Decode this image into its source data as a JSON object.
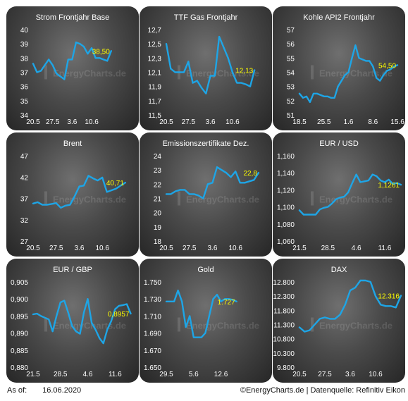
{
  "footer": {
    "as_of_label": "As of:",
    "as_of_date": "16.06.2020",
    "credit": "©EnergyCharts.de | Datenquelle: Refinitiv Eikon"
  },
  "watermark": "EnergyCharts.de",
  "colors": {
    "line": "#1ea5e6",
    "last_value": "#ffff00",
    "text": "#ffffff"
  },
  "chart_data": [
    {
      "type": "line",
      "title": "Strom Frontjahr Base",
      "ylim": [
        34,
        40
      ],
      "yticks": [
        "34",
        "35",
        "36",
        "37",
        "38",
        "39",
        "40"
      ],
      "xlim": [
        0,
        26
      ],
      "xticks": [
        {
          "x": 0,
          "label": "20.5"
        },
        {
          "x": 5,
          "label": "27.5"
        },
        {
          "x": 10,
          "label": "3.6"
        },
        {
          "x": 15,
          "label": "10.6"
        }
      ],
      "x": [
        0,
        1,
        2,
        3,
        4,
        5,
        6,
        7,
        8,
        9,
        10,
        11,
        12,
        13,
        14,
        15,
        16,
        17,
        18,
        19,
        20
      ],
      "values": [
        37.6,
        37.0,
        37.1,
        37.5,
        37.9,
        37.5,
        36.9,
        36.7,
        36.5,
        37.9,
        37.9,
        39.1,
        39.0,
        38.8,
        38.3,
        38.7,
        38.0,
        38.0,
        37.9,
        37.8,
        38.5
      ],
      "last_label": "38,50"
    },
    {
      "type": "line",
      "title": "TTF Gas Frontjahr",
      "ylim": [
        11.5,
        12.7
      ],
      "yticks": [
        "11,5",
        "11,7",
        "11,9",
        "12,1",
        "12,3",
        "12,5",
        "12,7"
      ],
      "xlim": [
        0,
        23
      ],
      "xticks": [
        {
          "x": 0,
          "label": "20.5"
        },
        {
          "x": 5,
          "label": "27.5"
        },
        {
          "x": 10,
          "label": "3.6"
        },
        {
          "x": 15,
          "label": "10.6"
        }
      ],
      "x": [
        0,
        1,
        2,
        3,
        4,
        5,
        6,
        7,
        8,
        9,
        10,
        11,
        12,
        13,
        14,
        15,
        16,
        17,
        18,
        19,
        20
      ],
      "values": [
        12.5,
        12.15,
        12.1,
        12.1,
        12.1,
        12.25,
        11.95,
        11.98,
        11.88,
        11.8,
        12.05,
        12.05,
        12.6,
        12.45,
        12.3,
        12.1,
        11.95,
        11.95,
        11.93,
        11.9,
        12.13
      ],
      "last_label": "12,13"
    },
    {
      "type": "line",
      "title": "Kohle API2 Frontjahr",
      "ylim": [
        51,
        57
      ],
      "yticks": [
        "51",
        "52",
        "53",
        "54",
        "55",
        "56",
        "57"
      ],
      "xlim": [
        0,
        29
      ],
      "xticks": [
        {
          "x": 0,
          "label": "18.5"
        },
        {
          "x": 7,
          "label": "25.5"
        },
        {
          "x": 14,
          "label": "1.6"
        },
        {
          "x": 21,
          "label": "8.6"
        },
        {
          "x": 28,
          "label": "15.6"
        }
      ],
      "x": [
        0,
        1,
        2,
        3,
        4,
        5,
        6,
        7,
        8,
        9,
        10,
        11,
        12,
        13,
        14,
        15,
        16,
        17,
        18,
        19,
        20,
        21,
        22,
        23,
        24,
        25,
        26,
        27,
        28
      ],
      "values": [
        52.5,
        52.2,
        52.3,
        51.9,
        52.5,
        52.5,
        52.4,
        52.3,
        52.3,
        52.2,
        52.2,
        53.0,
        53.4,
        53.8,
        54.0,
        55.0,
        55.9,
        55.0,
        54.9,
        54.8,
        54.8,
        54.4,
        53.6,
        53.4,
        53.8,
        54.1,
        54.2,
        54.4,
        54.5
      ],
      "last_label": "54,50"
    },
    {
      "type": "line",
      "title": "Brent",
      "ylim": [
        27,
        47
      ],
      "yticks": [
        "27",
        "32",
        "37",
        "42",
        "47"
      ],
      "xlim": [
        0,
        22
      ],
      "xticks": [
        {
          "x": 0,
          "label": "20.5"
        },
        {
          "x": 5,
          "label": "27.5"
        },
        {
          "x": 10,
          "label": "3.6"
        },
        {
          "x": 15,
          "label": "10.6"
        }
      ],
      "x": [
        0,
        1,
        2,
        3,
        4,
        5,
        6,
        7,
        8,
        9,
        10,
        11,
        12,
        13,
        14,
        15,
        16,
        17,
        18,
        19,
        20
      ],
      "values": [
        35.8,
        36.1,
        35.5,
        35.5,
        35.7,
        35.9,
        34.8,
        35.3,
        35.5,
        37.5,
        39.8,
        40.0,
        42.3,
        41.7,
        41.2,
        41.9,
        38.5,
        38.9,
        39.3,
        40.0,
        40.7
      ],
      "last_label": "40,71"
    },
    {
      "type": "line",
      "title": "Emissionszertifikate Dez.",
      "ylim": [
        18,
        24
      ],
      "yticks": [
        "18",
        "19",
        "20",
        "21",
        "22",
        "23",
        "24"
      ],
      "xlim": [
        0,
        22
      ],
      "xticks": [
        {
          "x": 0,
          "label": "20.5"
        },
        {
          "x": 5,
          "label": "27.5"
        },
        {
          "x": 10,
          "label": "3.6"
        },
        {
          "x": 15,
          "label": "10.6"
        }
      ],
      "x": [
        0,
        1,
        2,
        3,
        4,
        5,
        6,
        7,
        8,
        9,
        10,
        11,
        12,
        13,
        14,
        15,
        16,
        17,
        18,
        19,
        20
      ],
      "values": [
        21.3,
        21.3,
        21.5,
        21.6,
        21.6,
        21.3,
        21.3,
        21.2,
        21.0,
        22.0,
        22.1,
        23.2,
        23.0,
        22.8,
        22.5,
        22.9,
        22.1,
        22.1,
        22.2,
        22.3,
        22.8
      ],
      "last_label": "22,8"
    },
    {
      "type": "line",
      "title": "EUR / USD",
      "ylim": [
        1.06,
        1.16
      ],
      "yticks": [
        "1,060",
        "1,080",
        "1,100",
        "1,120",
        "1,140",
        "1,160"
      ],
      "xlim": [
        0,
        25
      ],
      "xticks": [
        {
          "x": 0,
          "label": "21.5"
        },
        {
          "x": 7,
          "label": "28.5"
        },
        {
          "x": 14,
          "label": "4.6"
        },
        {
          "x": 21,
          "label": "11.6"
        }
      ],
      "x": [
        0,
        1,
        2,
        3,
        4,
        5,
        6,
        7,
        8,
        9,
        10,
        11,
        12,
        13,
        14,
        15,
        16,
        17,
        18,
        19,
        20,
        21,
        22,
        23,
        24,
        25
      ],
      "values": [
        1.096,
        1.091,
        1.091,
        1.091,
        1.091,
        1.097,
        1.099,
        1.1,
        1.104,
        1.109,
        1.111,
        1.112,
        1.117,
        1.128,
        1.138,
        1.129,
        1.13,
        1.131,
        1.138,
        1.136,
        1.131,
        1.129,
        1.132,
        1.127,
        1.128,
        1.126
      ],
      "last_label": "1,1261"
    },
    {
      "type": "line",
      "title": "EUR / GBP",
      "ylim": [
        0.88,
        0.905
      ],
      "yticks": [
        "0,880",
        "0,885",
        "0,890",
        "0,895",
        "0,900",
        "0,905"
      ],
      "xlim": [
        0,
        26
      ],
      "xticks": [
        {
          "x": 0,
          "label": "21.5"
        },
        {
          "x": 7,
          "label": "28.5"
        },
        {
          "x": 14,
          "label": "4.6"
        },
        {
          "x": 21,
          "label": "11.6"
        }
      ],
      "x": [
        0,
        1,
        2,
        3,
        4,
        5,
        6,
        7,
        8,
        9,
        10,
        11,
        12,
        13,
        14,
        15,
        16,
        17,
        18,
        19,
        20,
        21,
        22,
        23,
        24,
        25
      ],
      "values": [
        0.8955,
        0.8957,
        0.895,
        0.8945,
        0.894,
        0.8905,
        0.895,
        0.899,
        0.8995,
        0.896,
        0.892,
        0.8905,
        0.8898,
        0.896,
        0.9,
        0.893,
        0.891,
        0.8885,
        0.887,
        0.891,
        0.8935,
        0.897,
        0.898,
        0.8982,
        0.8985,
        0.8957
      ],
      "last_label": "0,8957"
    },
    {
      "type": "line",
      "title": "Gold",
      "ylim": [
        1650,
        1750
      ],
      "yticks": [
        "1.650",
        "1.670",
        "1.690",
        "1.710",
        "1.730",
        "1.750"
      ],
      "xlim": [
        0,
        26
      ],
      "xticks": [
        {
          "x": 0,
          "label": "29.5"
        },
        {
          "x": 7,
          "label": "5.6"
        },
        {
          "x": 14,
          "label": "12.6"
        }
      ],
      "x": [
        0,
        1,
        2,
        3,
        4,
        5,
        6,
        7,
        8,
        9,
        10,
        11,
        12,
        13,
        14,
        15,
        16,
        17,
        18
      ],
      "values": [
        1727,
        1727,
        1727,
        1740,
        1727,
        1697,
        1710,
        1685,
        1685,
        1685,
        1690,
        1710,
        1730,
        1735,
        1727,
        1730,
        1730,
        1729,
        1727
      ],
      "last_label": "1.727"
    },
    {
      "type": "line",
      "title": "DAX",
      "ylim": [
        9800,
        12800
      ],
      "yticks": [
        "9.800",
        "10.300",
        "10.800",
        "11.300",
        "11.800",
        "12.300",
        "12.800"
      ],
      "xlim": [
        0,
        20
      ],
      "xticks": [
        {
          "x": 0,
          "label": "20.5"
        },
        {
          "x": 5,
          "label": "27.5"
        },
        {
          "x": 10,
          "label": "3.6"
        },
        {
          "x": 15,
          "label": "10.6"
        }
      ],
      "x": [
        0,
        1,
        2,
        3,
        4,
        5,
        6,
        7,
        8,
        9,
        10,
        11,
        12,
        13,
        14,
        15,
        16,
        17,
        18,
        19,
        20
      ],
      "values": [
        11200,
        11050,
        11100,
        11300,
        11500,
        11550,
        11500,
        11500,
        11650,
        12000,
        12500,
        12600,
        12850,
        12850,
        12800,
        12300,
        12000,
        11950,
        11950,
        11900,
        12316
      ],
      "last_label": "12.316"
    }
  ]
}
